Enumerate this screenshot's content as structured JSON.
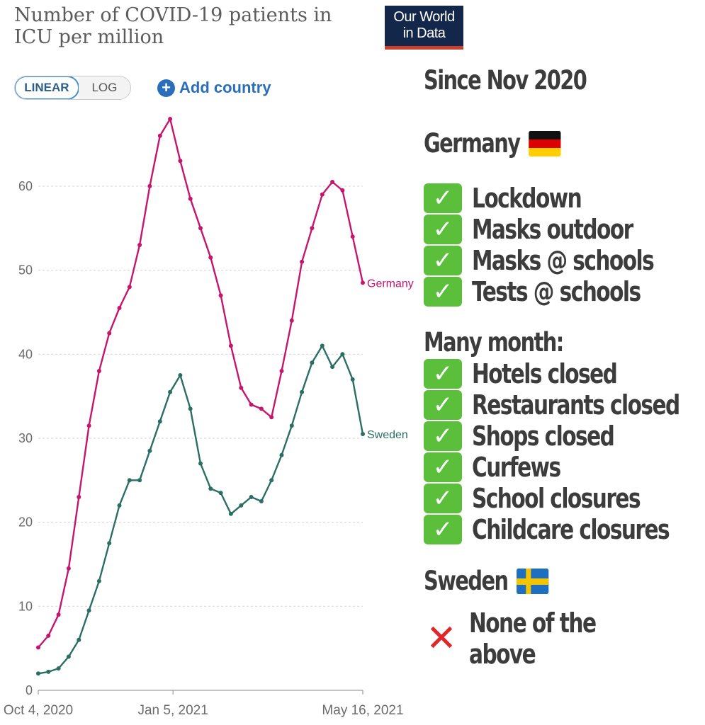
{
  "header": {
    "title_line1": "Number of COVID-19 patients in",
    "title_line2": "ICU per million",
    "logo_line1": "Our World",
    "logo_line2": "in Data"
  },
  "controls": {
    "linear_label": "LINEAR",
    "log_label": "LOG",
    "add_country_label": "Add country",
    "active_scale": "linear"
  },
  "side_panel": {
    "since": "Since Nov 2020",
    "germany_heading": "Germany",
    "germany_measures": [
      "Lockdown",
      "Masks outdoor",
      "Masks @ schools",
      "Tests @ schools"
    ],
    "many_month_heading": "Many month:",
    "many_month_measures": [
      "Hotels closed",
      "Restaurants closed",
      "Shops closed",
      "Curfews",
      "School closures",
      "Childcare closures"
    ],
    "sweden_heading": "Sweden",
    "sweden_note": "None of the above",
    "check_symbol": "✓",
    "cross_symbol": "✕"
  },
  "colors": {
    "germany": "#c4166f",
    "sweden": "#2b6e63",
    "grid": "#d9d9d9",
    "axis_text": "#6b6b6b"
  },
  "chart_data": {
    "type": "line",
    "title": "Number of COVID-19 patients in ICU per million",
    "x_ticks": [
      "Oct 4, 2020",
      "Jan 5, 2021",
      "May 16, 2021"
    ],
    "x_range": [
      "2020-10-04",
      "2021-05-16"
    ],
    "y_ticks": [
      0,
      10,
      20,
      30,
      40,
      50,
      60
    ],
    "ylim": [
      0,
      68
    ],
    "grid": "horizontal dashed",
    "series": [
      {
        "name": "Germany",
        "points": [
          [
            "2020-10-04",
            5.1
          ],
          [
            "2020-10-11",
            6.5
          ],
          [
            "2020-10-18",
            9.0
          ],
          [
            "2020-10-25",
            14.5
          ],
          [
            "2020-11-01",
            23.0
          ],
          [
            "2020-11-08",
            31.5
          ],
          [
            "2020-11-15",
            38.0
          ],
          [
            "2020-11-22",
            42.5
          ],
          [
            "2020-11-29",
            45.5
          ],
          [
            "2020-12-06",
            48.0
          ],
          [
            "2020-12-13",
            53.0
          ],
          [
            "2020-12-20",
            60.0
          ],
          [
            "2020-12-27",
            66.0
          ],
          [
            "2021-01-03",
            68.0
          ],
          [
            "2021-01-10",
            63.0
          ],
          [
            "2021-01-17",
            58.5
          ],
          [
            "2021-01-24",
            55.0
          ],
          [
            "2021-01-31",
            51.5
          ],
          [
            "2021-02-07",
            47.0
          ],
          [
            "2021-02-14",
            41.0
          ],
          [
            "2021-02-21",
            36.0
          ],
          [
            "2021-02-28",
            34.0
          ],
          [
            "2021-03-07",
            33.5
          ],
          [
            "2021-03-14",
            32.5
          ],
          [
            "2021-03-21",
            38.0
          ],
          [
            "2021-03-28",
            44.0
          ],
          [
            "2021-04-04",
            51.0
          ],
          [
            "2021-04-11",
            55.0
          ],
          [
            "2021-04-18",
            59.0
          ],
          [
            "2021-04-25",
            60.5
          ],
          [
            "2021-05-02",
            59.5
          ],
          [
            "2021-05-09",
            54.0
          ],
          [
            "2021-05-16",
            48.5
          ]
        ]
      },
      {
        "name": "Sweden",
        "points": [
          [
            "2020-10-04",
            2.0
          ],
          [
            "2020-10-11",
            2.2
          ],
          [
            "2020-10-18",
            2.6
          ],
          [
            "2020-10-25",
            4.0
          ],
          [
            "2020-11-01",
            6.0
          ],
          [
            "2020-11-08",
            9.5
          ],
          [
            "2020-11-15",
            13.0
          ],
          [
            "2020-11-22",
            17.5
          ],
          [
            "2020-11-29",
            22.0
          ],
          [
            "2020-12-06",
            25.0
          ],
          [
            "2020-12-13",
            25.0
          ],
          [
            "2020-12-20",
            28.5
          ],
          [
            "2020-12-27",
            32.0
          ],
          [
            "2021-01-03",
            35.5
          ],
          [
            "2021-01-10",
            37.5
          ],
          [
            "2021-01-17",
            33.5
          ],
          [
            "2021-01-24",
            27.0
          ],
          [
            "2021-01-31",
            24.0
          ],
          [
            "2021-02-07",
            23.5
          ],
          [
            "2021-02-14",
            21.0
          ],
          [
            "2021-02-21",
            22.0
          ],
          [
            "2021-02-28",
            23.0
          ],
          [
            "2021-03-07",
            22.5
          ],
          [
            "2021-03-14",
            25.0
          ],
          [
            "2021-03-21",
            28.0
          ],
          [
            "2021-03-28",
            31.5
          ],
          [
            "2021-04-04",
            35.5
          ],
          [
            "2021-04-11",
            39.0
          ],
          [
            "2021-04-18",
            41.0
          ],
          [
            "2021-04-25",
            38.5
          ],
          [
            "2021-05-02",
            40.0
          ],
          [
            "2021-05-09",
            37.0
          ],
          [
            "2021-05-16",
            30.5
          ]
        ]
      }
    ]
  }
}
